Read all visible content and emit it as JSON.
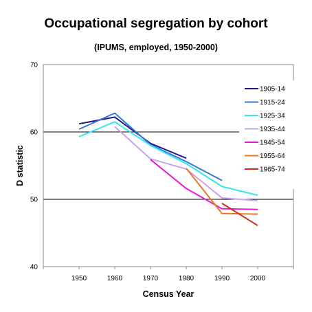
{
  "chart_data": {
    "type": "line",
    "title": "Occupational segregation by cohort",
    "subtitle": "(IPUMS, employed, 1950-2000)",
    "xlabel": "Census Year",
    "ylabel": "D statistic",
    "x": [
      1950,
      1960,
      1970,
      1980,
      1990,
      2000
    ],
    "xlim": [
      1940,
      2010
    ],
    "ylim": [
      40,
      70
    ],
    "yticks": [
      40,
      50,
      60,
      70
    ],
    "gridlines_y": [
      50,
      60
    ],
    "legend_position": "right",
    "series": [
      {
        "name": "1905-14",
        "color": "#1a1a8c",
        "values": [
          61.2,
          62.2,
          58.3,
          56.1,
          null,
          null
        ]
      },
      {
        "name": "1915-24",
        "color": "#3a75d6",
        "values": [
          60.4,
          62.8,
          58.1,
          55.6,
          52.8,
          null
        ]
      },
      {
        "name": "1925-34",
        "color": "#33e6f0",
        "values": [
          59.3,
          61.5,
          58.0,
          55.3,
          51.9,
          50.6
        ]
      },
      {
        "name": "1935-44",
        "color": "#c7a3ee",
        "values": [
          null,
          60.8,
          56.0,
          54.5,
          50.2,
          49.8
        ]
      },
      {
        "name": "1945-54",
        "color": "#e61ad9",
        "values": [
          null,
          null,
          55.9,
          51.6,
          48.6,
          48.5
        ]
      },
      {
        "name": "1955-64",
        "color": "#e67a1f",
        "values": [
          null,
          null,
          null,
          54.6,
          47.9,
          47.8
        ]
      },
      {
        "name": "1965-74",
        "color": "#d42a1a",
        "values": [
          null,
          null,
          null,
          null,
          49.4,
          46.1
        ]
      }
    ]
  }
}
